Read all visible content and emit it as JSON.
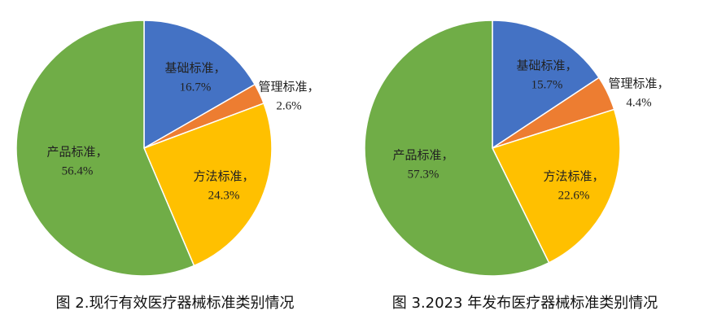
{
  "chart_data": [
    {
      "type": "pie",
      "title": "图 2.现行有效医疗器械标准类别情况",
      "categories": [
        "基础标准，",
        "管理标准，",
        "方法标准，",
        "产品标准，"
      ],
      "values": [
        16.7,
        2.6,
        24.3,
        56.4
      ],
      "value_labels": [
        "16.7%",
        "2.6%",
        "24.3%",
        "56.4%"
      ],
      "colors": [
        "#4472c4",
        "#ed7d31",
        "#ffc000",
        "#70ad47"
      ]
    },
    {
      "type": "pie",
      "title": "图 3.2023 年发布医疗器械标准类别情况",
      "categories": [
        "基础标准，",
        "管理标准，",
        "方法标准，",
        "产品标准，"
      ],
      "values": [
        15.7,
        4.4,
        22.6,
        57.3
      ],
      "value_labels": [
        "15.7%",
        "4.4%",
        "22.6%",
        "57.3%"
      ],
      "colors": [
        "#4472c4",
        "#ed7d31",
        "#ffc000",
        "#70ad47"
      ]
    }
  ]
}
